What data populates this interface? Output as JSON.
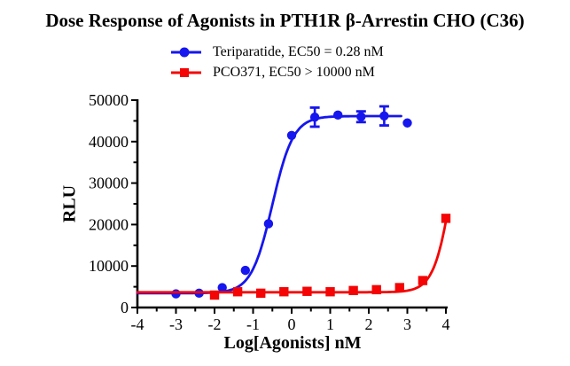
{
  "chart_data": {
    "type": "scatter",
    "title": "Dose Response of Agonists in PTH1R β-Arrestin CHO (C36)",
    "xlabel": "Log[Agonists] nM",
    "ylabel": "RLU",
    "xlim": [
      -4,
      4
    ],
    "ylim": [
      0,
      50000
    ],
    "xticks": [
      -4,
      -3,
      -2,
      -1,
      0,
      1,
      2,
      3,
      4
    ],
    "x_minor_step": 0.5,
    "yticks": [
      0,
      10000,
      20000,
      30000,
      40000,
      50000
    ],
    "y_minor_step": 5000,
    "grid": false,
    "legend_position": "top-center",
    "axis_color": "#000000",
    "background_color": "#ffffff",
    "series": [
      {
        "name": "Teriparatide, EC50 = 0.28 nM",
        "color": "#1616ee",
        "marker": "circle",
        "x": [
          -3,
          -2.4,
          -1.8,
          -1.2,
          -0.6,
          0,
          0.6,
          1.2,
          1.8,
          2.4,
          3
        ],
        "y": [
          3300,
          3450,
          4800,
          8950,
          20200,
          41500,
          45900,
          46400,
          46000,
          46200,
          44500
        ],
        "y_err": [
          0,
          0,
          0,
          0,
          0,
          0,
          2300,
          0,
          1300,
          2300,
          0
        ],
        "fit": {
          "kind": "logistic",
          "bottom": 3450,
          "top": 46150,
          "log_ec50": -0.5,
          "hill": 1.6,
          "x_range": [
            -4,
            2.85
          ]
        }
      },
      {
        "name": "PCO371, EC50 > 10000 nM",
        "color": "#f40404",
        "marker": "square",
        "x": [
          -2,
          -1.4,
          -0.8,
          -0.2,
          0.4,
          1,
          1.6,
          2.2,
          2.8,
          3.4,
          4
        ],
        "y": [
          3000,
          3800,
          3450,
          3800,
          3900,
          3800,
          4100,
          4300,
          4800,
          6500,
          21500
        ],
        "y_err": [
          0,
          0,
          0,
          0,
          0,
          0,
          0,
          0,
          0,
          0,
          0
        ],
        "fit": {
          "kind": "logistic",
          "bottom": 3680,
          "top": 60000,
          "log_ec50": 4.2,
          "hill": 1.8,
          "x_range": [
            -4,
            4
          ]
        }
      }
    ]
  }
}
